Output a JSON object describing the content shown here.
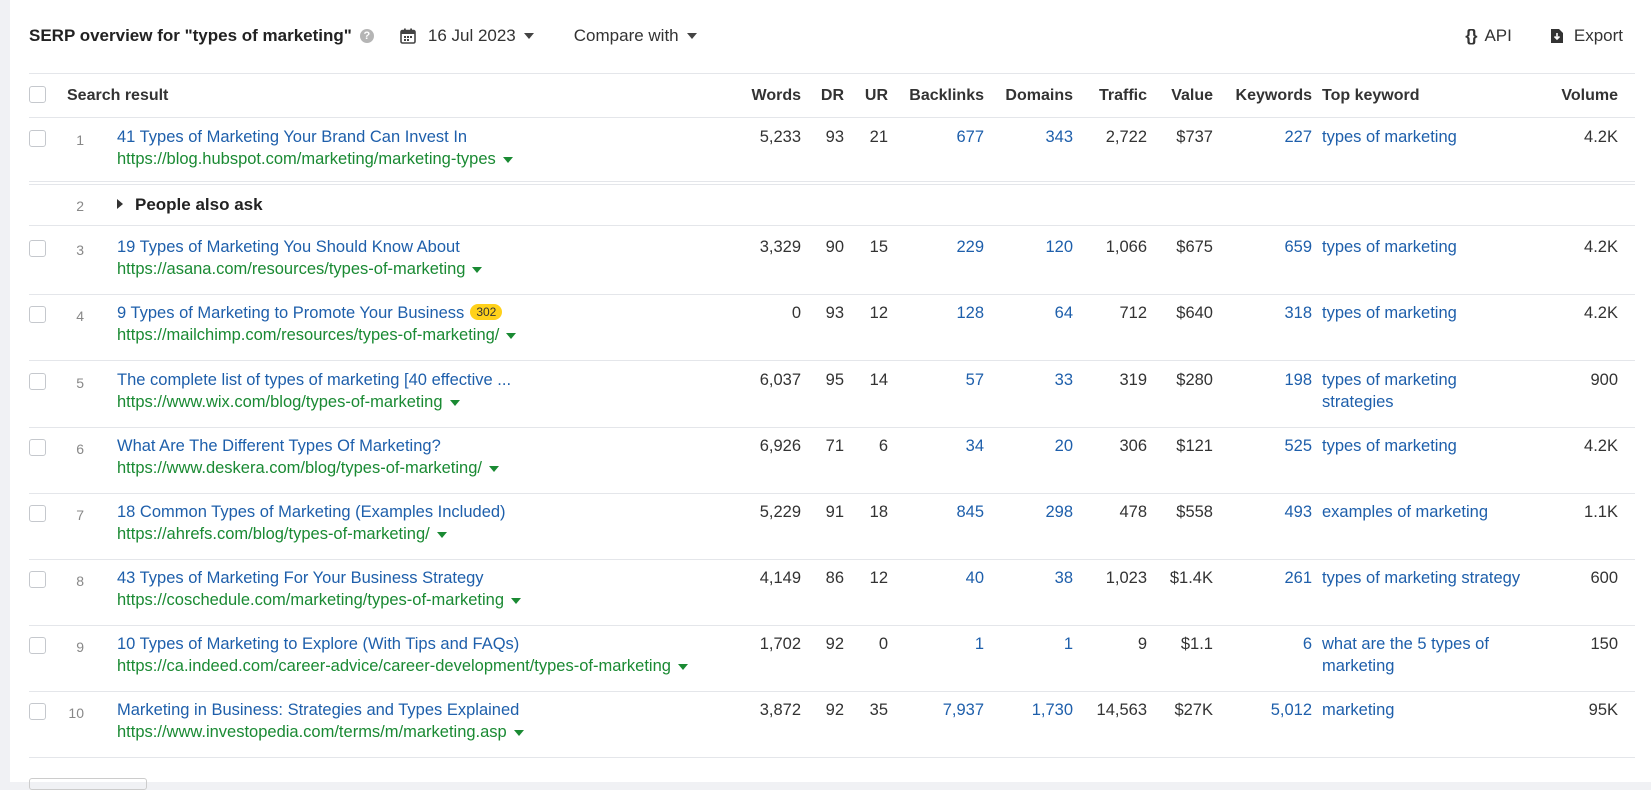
{
  "header": {
    "title": "SERP overview for \"types of marketing\"",
    "help_icon": "question-circle-icon",
    "date": "16 Jul 2023",
    "compare_label": "Compare with",
    "api_label": "API",
    "export_label": "Export"
  },
  "columns": {
    "search_result": "Search result",
    "words": "Words",
    "dr": "DR",
    "ur": "UR",
    "backlinks": "Backlinks",
    "domains": "Domains",
    "traffic": "Traffic",
    "value": "Value",
    "keywords": "Keywords",
    "top_keyword": "Top keyword",
    "volume": "Volume"
  },
  "people_also_ask": {
    "pos": "2",
    "label": "People also ask"
  },
  "rows": [
    {
      "pos": "1",
      "title": "41 Types of Marketing Your Brand Can Invest In",
      "url": "https://blog.hubspot.com/marketing/marketing-types",
      "badge": "",
      "words": "5,233",
      "dr": "93",
      "ur": "21",
      "backlinks": "677",
      "domains": "343",
      "traffic": "2,722",
      "value": "$737",
      "keywords": "227",
      "top1": "types of marketing",
      "top2": "",
      "volume": "4.2K"
    },
    {
      "pos": "3",
      "title": "19 Types of Marketing You Should Know About",
      "url": "https://asana.com/resources/types-of-marketing",
      "badge": "",
      "words": "3,329",
      "dr": "90",
      "ur": "15",
      "backlinks": "229",
      "domains": "120",
      "traffic": "1,066",
      "value": "$675",
      "keywords": "659",
      "top1": "types of marketing",
      "top2": "",
      "volume": "4.2K"
    },
    {
      "pos": "4",
      "title": "9 Types of Marketing to Promote Your Business",
      "url": "https://mailchimp.com/resources/types-of-marketing/",
      "badge": "302",
      "words": "0",
      "dr": "93",
      "ur": "12",
      "backlinks": "128",
      "domains": "64",
      "traffic": "712",
      "value": "$640",
      "keywords": "318",
      "top1": "types of marketing",
      "top2": "",
      "volume": "4.2K"
    },
    {
      "pos": "5",
      "title": "The complete list of types of marketing [40 effective ...",
      "url": "https://www.wix.com/blog/types-of-marketing",
      "badge": "",
      "words": "6,037",
      "dr": "95",
      "ur": "14",
      "backlinks": "57",
      "domains": "33",
      "traffic": "319",
      "value": "$280",
      "keywords": "198",
      "top1": "types of marketing",
      "top2": "strategies",
      "volume": "900"
    },
    {
      "pos": "6",
      "title": "What Are The Different Types Of Marketing?",
      "url": "https://www.deskera.com/blog/types-of-marketing/",
      "badge": "",
      "words": "6,926",
      "dr": "71",
      "ur": "6",
      "backlinks": "34",
      "domains": "20",
      "traffic": "306",
      "value": "$121",
      "keywords": "525",
      "top1": "types of marketing",
      "top2": "",
      "volume": "4.2K"
    },
    {
      "pos": "7",
      "title": "18 Common Types of Marketing (Examples Included)",
      "url": "https://ahrefs.com/blog/types-of-marketing/",
      "badge": "",
      "words": "5,229",
      "dr": "91",
      "ur": "18",
      "backlinks": "845",
      "domains": "298",
      "traffic": "478",
      "value": "$558",
      "keywords": "493",
      "top1": "examples of marketing",
      "top2": "",
      "volume": "1.1K"
    },
    {
      "pos": "8",
      "title": "43 Types of Marketing For Your Business Strategy",
      "url": "https://coschedule.com/marketing/types-of-marketing",
      "badge": "",
      "words": "4,149",
      "dr": "86",
      "ur": "12",
      "backlinks": "40",
      "domains": "38",
      "traffic": "1,023",
      "value": "$1.4K",
      "keywords": "261",
      "top1": "types of marketing strategy",
      "top2": "",
      "volume": "600"
    },
    {
      "pos": "9",
      "title": "10 Types of Marketing to Explore (With Tips and FAQs)",
      "url": "https://ca.indeed.com/career-advice/career-development/types-of-marketing",
      "badge": "",
      "words": "1,702",
      "dr": "92",
      "ur": "0",
      "backlinks": "1",
      "domains": "1",
      "traffic": "9",
      "value": "$1.1",
      "keywords": "6",
      "top1": "what are the 5 types of",
      "top2": "marketing",
      "volume": "150"
    },
    {
      "pos": "10",
      "title": "Marketing in Business: Strategies and Types Explained",
      "url": "https://www.investopedia.com/terms/m/marketing.asp",
      "badge": "",
      "words": "3,872",
      "dr": "92",
      "ur": "35",
      "backlinks": "7,937",
      "domains": "1,730",
      "traffic": "14,563",
      "value": "$27K",
      "keywords": "5,012",
      "top1": "marketing",
      "top2": "",
      "volume": "95K"
    }
  ]
}
